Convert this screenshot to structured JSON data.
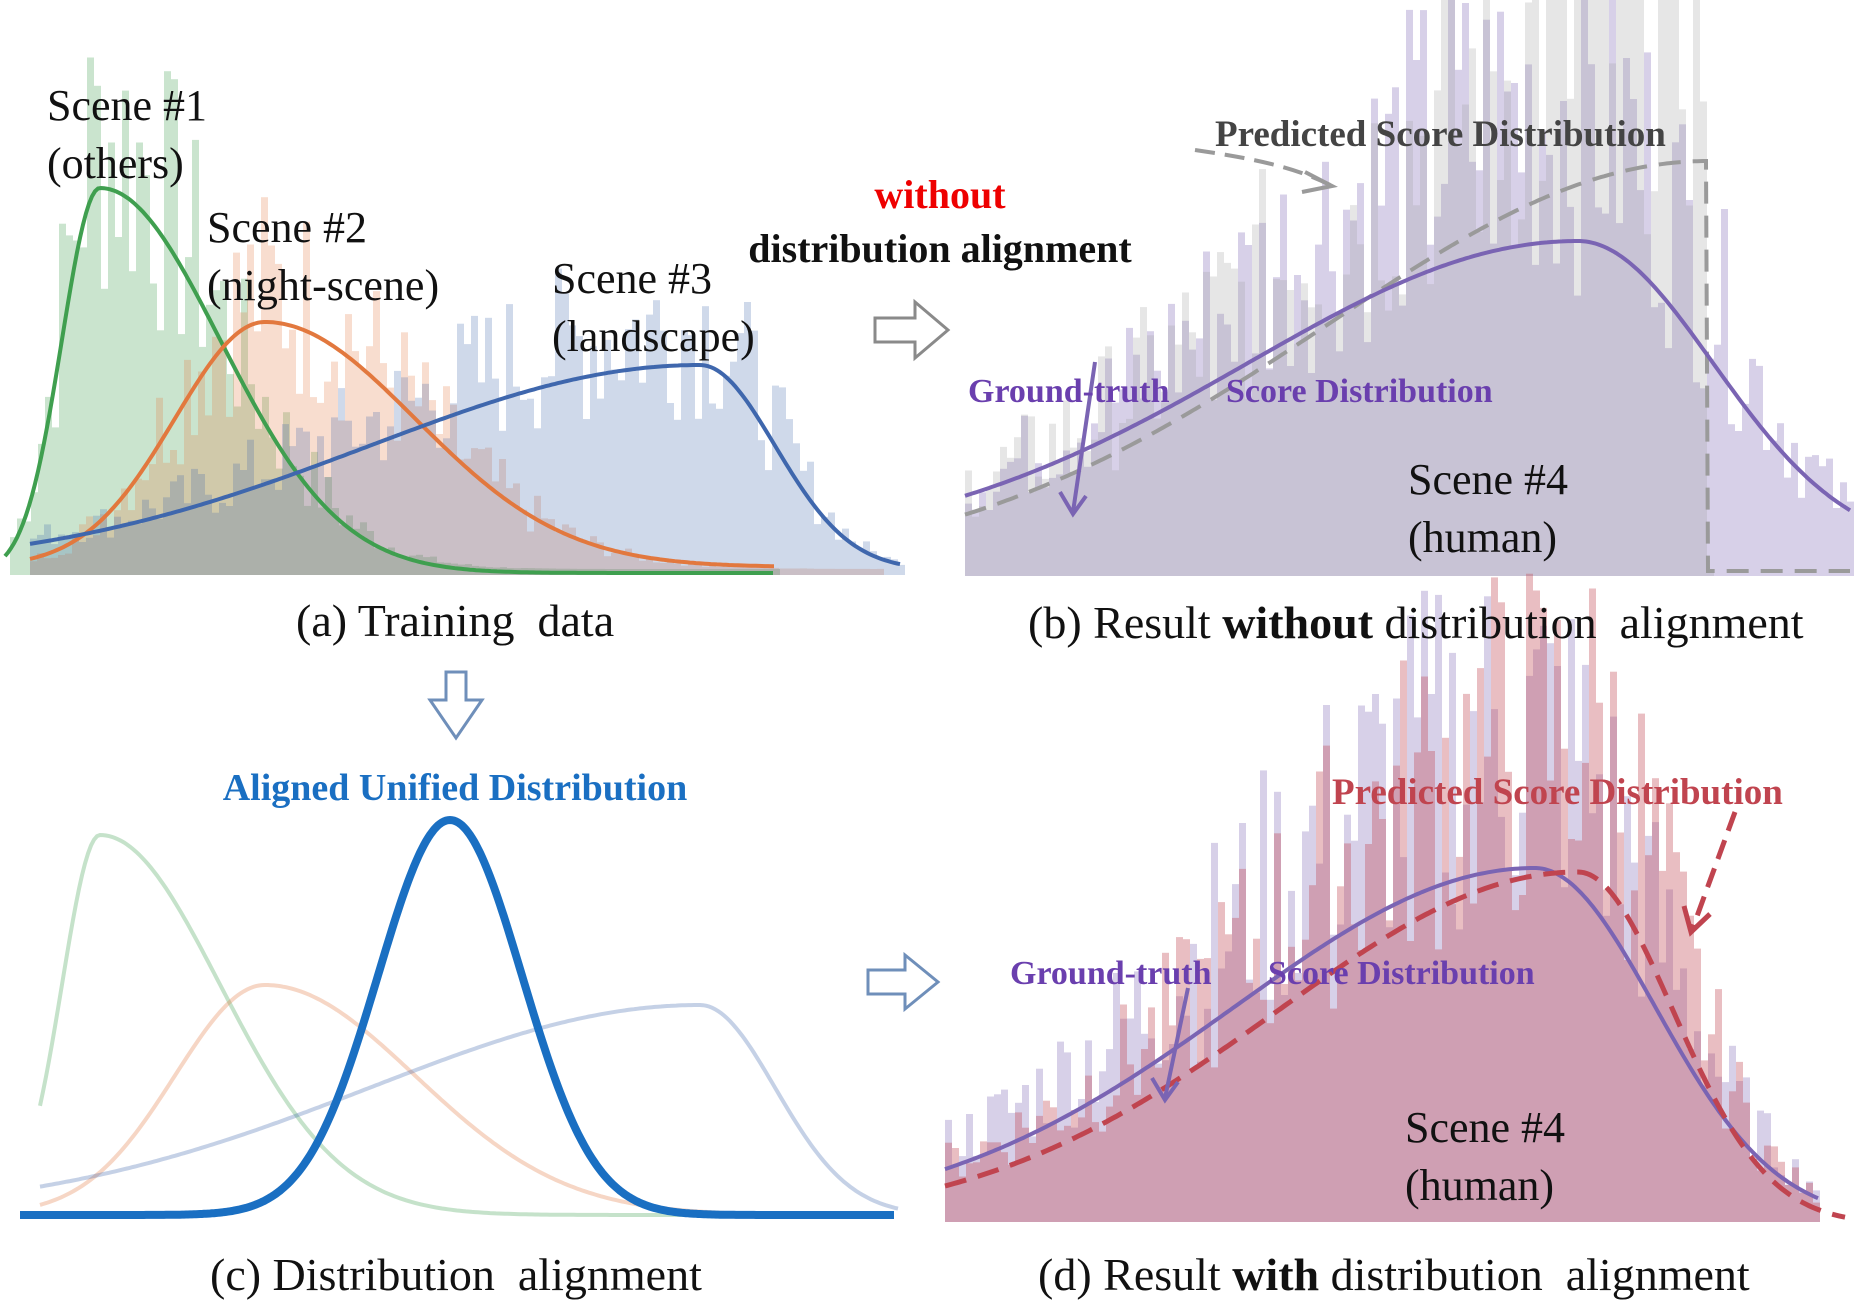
{
  "colors": {
    "scene1": "#3f9f4f",
    "scene2": "#e2783e",
    "scene3": "#3f67ad",
    "scene4_gt": "#7a64b3",
    "unified": "#1a6fc2",
    "pred_without": "#9a9a9a",
    "pred_with": "#c0444f",
    "without_word": "#ee0000",
    "gt_label": "#6a3fae",
    "pred_without_label": "#444444",
    "pred_with_label": "#c0444f",
    "unified_label": "#1a6fc2"
  },
  "panel_a": {
    "caption": "(a) Training  data",
    "scene1_line1": "Scene #1",
    "scene1_line2": "(others)",
    "scene2_line1": "Scene #2",
    "scene2_line2": "(night-scene)",
    "scene3_line1": "Scene #3",
    "scene3_line2": "(landscape)"
  },
  "arrow_text": {
    "line1": "without",
    "line2": "distribution alignment"
  },
  "panel_b": {
    "caption_prefix": "(b) Result ",
    "caption_bold": "without",
    "caption_suffix": " distribution  alignment",
    "pred_label": "Predicted Score Distribution",
    "gt_label_part1": "Ground-truth",
    "gt_label_part2": "Score Distribution",
    "scene_line1": "Scene #4",
    "scene_line2": "(human)"
  },
  "panel_c": {
    "caption": "(c) Distribution  alignment",
    "unified_label": "Aligned Unified Distribution"
  },
  "panel_d": {
    "caption_prefix": "(d) Result ",
    "caption_bold": "with",
    "caption_suffix": " distribution  alignment",
    "pred_label": "Predicted Score Distribution",
    "gt_label_part1": "Ground-truth",
    "gt_label_part2": "Score Distribution",
    "scene_line1": "Scene #4",
    "scene_line2": "(human)"
  }
}
